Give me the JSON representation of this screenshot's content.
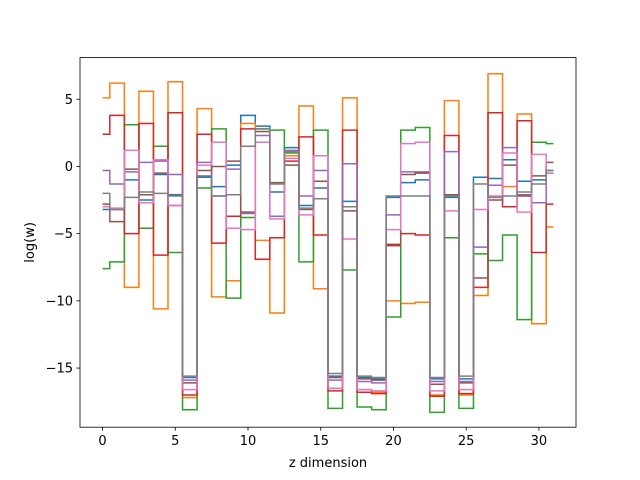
{
  "chart_data": {
    "type": "line",
    "title": "",
    "xlabel": "z dimension",
    "ylabel": "log(w)",
    "xlim": [
      -1.55,
      32.55
    ],
    "ylim": [
      -19.4,
      8.1
    ],
    "x_ticks": [
      0,
      5,
      10,
      15,
      20,
      25,
      30
    ],
    "y_ticks": [
      5,
      0,
      -5,
      -10,
      -15
    ],
    "y_tick_labels": [
      "5",
      "0",
      "−5",
      "−10",
      "−15"
    ],
    "grid": false,
    "legend": "none",
    "step": "mid",
    "x": [
      0,
      1,
      2,
      3,
      4,
      5,
      6,
      7,
      8,
      9,
      10,
      11,
      12,
      13,
      14,
      15,
      16,
      17,
      18,
      19,
      20,
      21,
      22,
      23,
      24,
      25,
      26,
      27,
      28,
      29,
      30,
      31
    ],
    "series": [
      {
        "color": "#1f77b4",
        "values": [
          -3.2,
          -3.2,
          -1.0,
          -2.5,
          -0.6,
          -2.1,
          -15.7,
          -0.8,
          -1.5,
          0.1,
          3.8,
          3.0,
          -1.9,
          1.4,
          -2.9,
          -1.6,
          -15.6,
          -2.6,
          -15.7,
          -15.8,
          -2.3,
          -1.2,
          -1.0,
          -15.8,
          -2.3,
          -15.8,
          -0.8,
          -0.9,
          0.5,
          -1.1,
          -1.0,
          -0.3
        ]
      },
      {
        "color": "#ff7f0e",
        "values": [
          5.1,
          6.2,
          -9.0,
          5.6,
          -10.6,
          6.3,
          -17.2,
          4.3,
          -9.7,
          -8.5,
          3.2,
          -5.5,
          -10.9,
          0.8,
          4.5,
          -9.1,
          -16.5,
          5.1,
          -16.6,
          -16.8,
          -10.0,
          -10.2,
          -10.1,
          -17.0,
          4.9,
          -17.0,
          -9.6,
          6.9,
          -1.5,
          3.9,
          -11.7,
          -4.5
        ]
      },
      {
        "color": "#2ca02c",
        "values": [
          -7.6,
          -7.1,
          3.1,
          -4.6,
          1.5,
          -6.4,
          -18.1,
          -1.6,
          2.8,
          -9.8,
          -3.8,
          2.8,
          2.7,
          1.0,
          -7.1,
          2.7,
          -18.0,
          -7.7,
          -17.9,
          -18.1,
          -11.2,
          2.7,
          2.9,
          -18.3,
          -5.3,
          -18.0,
          -6.5,
          -7.0,
          -5.1,
          -11.4,
          1.8,
          1.7
        ]
      },
      {
        "color": "#d62728",
        "values": [
          2.4,
          3.8,
          -5.0,
          3.2,
          -6.6,
          4.0,
          -17.0,
          2.4,
          -5.7,
          -3.7,
          2.8,
          -6.9,
          -5.3,
          0.4,
          2.2,
          -5.1,
          -16.7,
          2.7,
          -16.8,
          -16.9,
          -5.8,
          -5.0,
          -5.1,
          -17.1,
          2.3,
          -16.9,
          -9.0,
          4.0,
          -3.0,
          3.4,
          -6.4,
          -2.8
        ]
      },
      {
        "color": "#9467bd",
        "values": [
          -0.3,
          -1.3,
          -0.4,
          0.3,
          0.4,
          -0.6,
          -15.9,
          0.3,
          -2.2,
          -0.2,
          -3.5,
          2.3,
          -3.7,
          1.2,
          -2.2,
          -0.3,
          -15.9,
          0.2,
          -16.0,
          -16.1,
          -3.6,
          -0.4,
          -0.4,
          -16.0,
          1.1,
          -16.0,
          -6.0,
          -1.4,
          1.4,
          -2.1,
          -2.7,
          -0.5
        ]
      },
      {
        "color": "#8c564b",
        "values": [
          -2.8,
          -4.1,
          -0.2,
          -2.1,
          -0.5,
          -2.9,
          -16.1,
          -0.3,
          0.0,
          0.4,
          -3.4,
          2.6,
          -1.2,
          0.1,
          -3.2,
          -1.1,
          -15.7,
          -3.3,
          -15.8,
          -15.9,
          -5.9,
          -0.6,
          -0.5,
          -16.2,
          -2.1,
          -16.1,
          -8.3,
          -2.5,
          0.1,
          -2.2,
          -0.7,
          0.3
        ]
      },
      {
        "color": "#e377c2",
        "values": [
          -3.0,
          -3.1,
          1.2,
          -2.7,
          0.5,
          -2.9,
          -16.6,
          0.1,
          1.8,
          -4.6,
          -4.7,
          1.8,
          -3.9,
          0.6,
          -3.6,
          0.8,
          -16.5,
          -5.4,
          -16.6,
          -16.7,
          -4.7,
          1.7,
          1.8,
          -16.7,
          -3.3,
          -16.6,
          -3.2,
          -2.2,
          1.0,
          -3.4,
          0.9,
          -0.5
        ]
      },
      {
        "color": "#7f7f7f",
        "values": [
          -2.0,
          -3.2,
          -2.3,
          -1.9,
          -2.0,
          -2.2,
          -15.6,
          -0.7,
          -2.2,
          -2.1,
          1.5,
          2.8,
          -1.3,
          1.1,
          -3.1,
          -2.4,
          -15.4,
          -3.0,
          -15.6,
          -15.7,
          -2.2,
          -2.2,
          -2.2,
          -15.7,
          -2.2,
          -15.6,
          -1.3,
          -2.3,
          -2.2,
          -1.9,
          -1.3,
          -0.3
        ]
      }
    ]
  }
}
